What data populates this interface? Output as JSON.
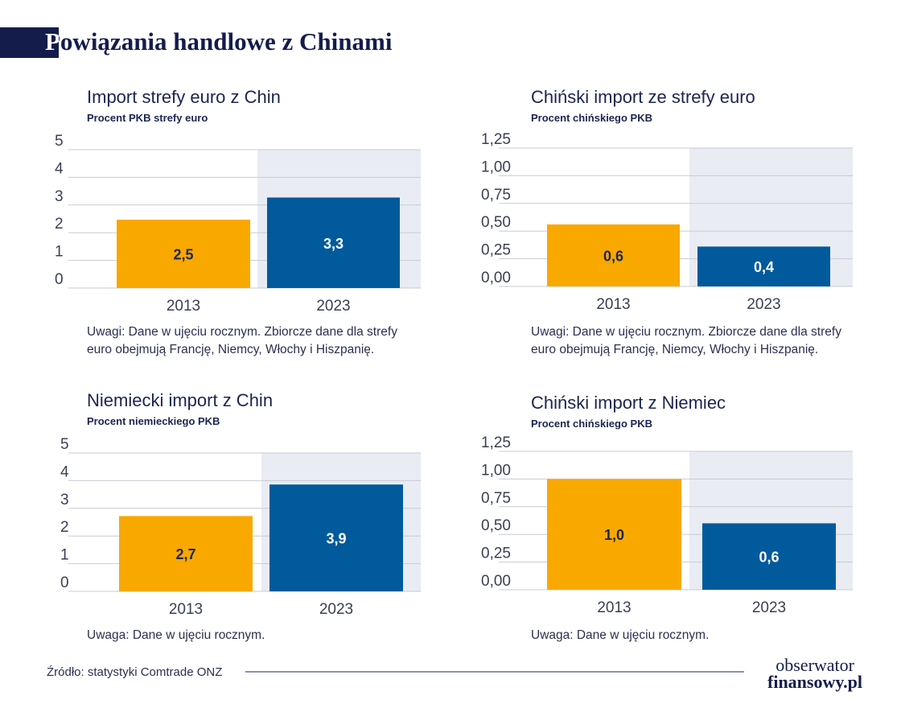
{
  "title": "Powiązania handlowe z Chinami",
  "source": "Źródło: statystyki Comtrade ONZ",
  "logo": {
    "line1": "obserwator",
    "line2": "finansowy.pl"
  },
  "chart_data": [
    {
      "type": "bar",
      "title": "Import strefy euro z Chin",
      "subtitle": "Procent PKB strefy euro",
      "categories": [
        "2013",
        "2023"
      ],
      "values": [
        2.47,
        3.27
      ],
      "value_labels": [
        "2,5",
        "3,3"
      ],
      "colors": [
        "#f9a800",
        "#005a9c"
      ],
      "ylim": [
        0,
        5
      ],
      "yticks": [
        0,
        1,
        2,
        3,
        4,
        5
      ],
      "grid": true,
      "notes": [
        "Uwagi: Dane w ujęciu rocznym. Zbiorcze dane dla strefy",
        "euro obejmują Francję, Niemcy, Włochy i Hiszpanię."
      ]
    },
    {
      "type": "bar",
      "title": "Chiński import ze strefy euro",
      "subtitle": "Procent chińskiego PKB",
      "categories": [
        "2013",
        "2023"
      ],
      "values": [
        0.56,
        0.36
      ],
      "value_labels": [
        "0,6",
        "0,4"
      ],
      "colors": [
        "#f9a800",
        "#005a9c"
      ],
      "ylim": [
        0,
        1.25
      ],
      "yticks": [
        {
          "value": 0,
          "label": "0,00"
        },
        {
          "value": 0.25,
          "label": "0,25"
        },
        {
          "value": 0.5,
          "label": "0,50"
        },
        {
          "value": 0.75,
          "label": "0,75"
        },
        {
          "value": 1,
          "label": "1,00"
        },
        {
          "value": 1.25,
          "label": "1,25"
        }
      ],
      "grid": true,
      "notes": [
        "Uwagi: Dane w ujęciu rocznym. Zbiorcze dane dla strefy",
        "euro obejmują Francję, Niemcy, Włochy i Hiszpanię."
      ]
    },
    {
      "type": "bar",
      "title": "Niemiecki import z Chin",
      "subtitle": "Procent niemieckiego PKB",
      "categories": [
        "2013",
        "2023"
      ],
      "values": [
        2.72,
        3.86
      ],
      "value_labels": [
        "2,7",
        "3,9"
      ],
      "colors": [
        "#f9a800",
        "#005a9c"
      ],
      "ylim": [
        0,
        5
      ],
      "yticks": [
        0,
        1,
        2,
        3,
        4,
        5
      ],
      "grid": true,
      "notes": [
        "Uwaga: Dane w ujęciu rocznym."
      ]
    },
    {
      "type": "bar",
      "title": "Chiński import z Niemiec",
      "subtitle": "Procent chińskiego PKB",
      "categories": [
        "2013",
        "2023"
      ],
      "values": [
        1.0,
        0.6
      ],
      "value_labels": [
        "1,0",
        "0,6"
      ],
      "colors": [
        "#f9a800",
        "#005a9c"
      ],
      "ylim": [
        0,
        1.25
      ],
      "yticks": [
        {
          "value": 0,
          "label": "0,00"
        },
        {
          "value": 0.25,
          "label": "0,25"
        },
        {
          "value": 0.5,
          "label": "0,50"
        },
        {
          "value": 0.75,
          "label": "0,75"
        },
        {
          "value": 1,
          "label": "1,00"
        },
        {
          "value": 1.25,
          "label": "1,25"
        }
      ],
      "grid": true,
      "notes": [
        "Uwaga: Dane w ujęciu rocznym."
      ]
    }
  ]
}
